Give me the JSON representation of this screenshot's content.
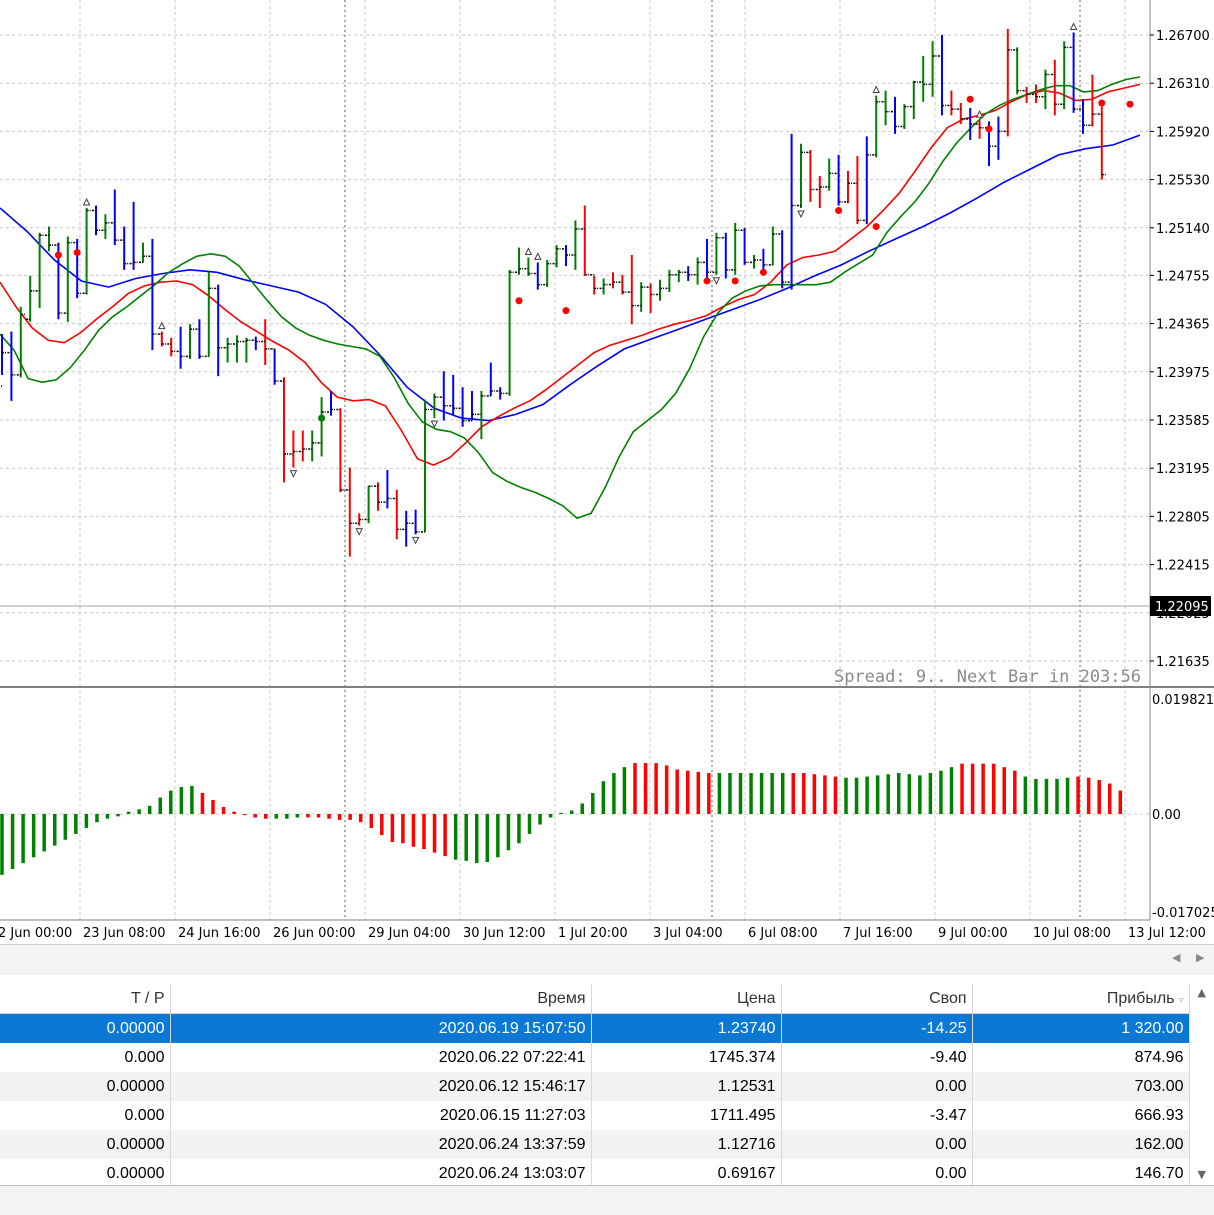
{
  "chart": {
    "price_axis_labels": [
      "1.26700",
      "1.26310",
      "1.25920",
      "1.25530",
      "1.25140",
      "1.24755",
      "1.24365",
      "1.23975",
      "1.23585",
      "1.23195",
      "1.22805",
      "1.22415",
      "1.22025",
      "1.21635"
    ],
    "current_price": "1.22095",
    "time_axis_labels": [
      "2 Jun 00:00",
      "23 Jun 08:00",
      "24 Jun 16:00",
      "26 Jun 00:00",
      "29 Jun 04:00",
      "30 Jun 12:00",
      "1 Jul 20:00",
      "3 Jul 04:00",
      "6 Jul 08:00",
      "7 Jul 16:00",
      "9 Jul 00:00",
      "10 Jul 08:00",
      "13 Jul 12:00"
    ],
    "spread_text": "Spread: 9.. Next Bar in 203:56",
    "osc_axis_labels": [
      "0.019821",
      "0.00",
      "-0.017025"
    ],
    "colors": {
      "up": "#008000",
      "down": "#ff0000",
      "neutral": "#0000ff",
      "ma_green": "#008000",
      "ma_red": "#ff0000",
      "ma_blue": "#0000ff",
      "grid": "#c8c8c8"
    }
  },
  "chart_data": {
    "type": "line",
    "ylim": [
      1.2144,
      1.2705
    ],
    "bars": [
      [
        1.2386,
        1.2428,
        1.2395,
        1.2413,
        "blue"
      ],
      [
        1.2413,
        1.243,
        1.2374,
        1.2395,
        "blue"
      ],
      [
        1.2395,
        1.245,
        1.2393,
        1.2444,
        "green"
      ],
      [
        1.244,
        1.2475,
        1.2438,
        1.2463,
        "green"
      ],
      [
        1.2463,
        1.251,
        1.2449,
        1.2508,
        "green"
      ],
      [
        1.2508,
        1.2515,
        1.2495,
        1.25,
        "green"
      ],
      [
        1.25,
        1.2502,
        1.244,
        1.2445,
        "blue"
      ],
      [
        1.2445,
        1.2507,
        1.2438,
        1.2502,
        "green"
      ],
      [
        1.2502,
        1.2505,
        1.2457,
        1.2461,
        "blue"
      ],
      [
        1.2461,
        1.253,
        1.246,
        1.2528,
        "green"
      ],
      [
        1.2528,
        1.2532,
        1.2508,
        1.2512,
        "blue"
      ],
      [
        1.2512,
        1.2525,
        1.2505,
        1.2518,
        "green"
      ],
      [
        1.2518,
        1.2545,
        1.25,
        1.2504,
        "blue"
      ],
      [
        1.2504,
        1.2515,
        1.248,
        1.2485,
        "blue"
      ],
      [
        1.2485,
        1.2535,
        1.248,
        1.2486,
        "blue"
      ],
      [
        1.2486,
        1.2502,
        1.2486,
        1.2491,
        "green"
      ],
      [
        1.2491,
        1.2505,
        1.2415,
        1.2428,
        "blue"
      ],
      [
        1.2428,
        1.243,
        1.2418,
        1.242,
        "red"
      ],
      [
        1.242,
        1.2425,
        1.241,
        1.2414,
        "red"
      ],
      [
        1.2414,
        1.2434,
        1.24,
        1.241,
        "blue"
      ],
      [
        1.241,
        1.2436,
        1.2408,
        1.2432,
        "green"
      ],
      [
        1.2432,
        1.244,
        1.2408,
        1.241,
        "blue"
      ],
      [
        1.241,
        1.2478,
        1.241,
        1.2465,
        "green"
      ],
      [
        1.2465,
        1.2468,
        1.2394,
        1.2417,
        "blue"
      ],
      [
        1.2417,
        1.2425,
        1.2405,
        1.242,
        "green"
      ],
      [
        1.242,
        1.2427,
        1.2405,
        1.2422,
        "green"
      ],
      [
        1.2422,
        1.2425,
        1.2405,
        1.2423,
        "green"
      ],
      [
        1.2423,
        1.2426,
        1.2415,
        1.2422,
        "blue"
      ],
      [
        1.2422,
        1.244,
        1.2403,
        1.2416,
        "red"
      ],
      [
        1.2416,
        1.2416,
        1.2387,
        1.239,
        "blue"
      ],
      [
        1.239,
        1.2393,
        1.2308,
        1.2331,
        "red"
      ],
      [
        1.2331,
        1.235,
        1.232,
        1.2333,
        "red"
      ],
      [
        1.2333,
        1.235,
        1.2325,
        1.2335,
        "red"
      ],
      [
        1.2335,
        1.235,
        1.2325,
        1.234,
        "green"
      ],
      [
        1.234,
        1.2377,
        1.2329,
        1.2365,
        "green"
      ],
      [
        1.2365,
        1.2382,
        1.2362,
        1.2367,
        "blue"
      ],
      [
        1.2367,
        1.2368,
        1.23,
        1.2302,
        "red"
      ],
      [
        1.2302,
        1.232,
        1.2248,
        1.2275,
        "red"
      ],
      [
        1.2275,
        1.2283,
        1.2273,
        1.2278,
        "red"
      ],
      [
        1.2278,
        1.2305,
        1.2275,
        1.2305,
        "green"
      ],
      [
        1.2305,
        1.2308,
        1.2285,
        1.2292,
        "red"
      ],
      [
        1.2292,
        1.2318,
        1.2287,
        1.2295,
        "blue"
      ],
      [
        1.2295,
        1.2302,
        1.2262,
        1.227,
        "red"
      ],
      [
        1.227,
        1.2285,
        1.2256,
        1.2275,
        "blue"
      ],
      [
        1.2275,
        1.2286,
        1.2266,
        1.2268,
        "blue"
      ],
      [
        1.2268,
        1.2375,
        1.2268,
        1.2367,
        "green"
      ],
      [
        1.2367,
        1.238,
        1.236,
        1.2377,
        "green"
      ],
      [
        1.2377,
        1.2398,
        1.2358,
        1.237,
        "blue"
      ],
      [
        1.237,
        1.2395,
        1.2362,
        1.2368,
        "blue"
      ],
      [
        1.2368,
        1.2385,
        1.2353,
        1.2358,
        "blue"
      ],
      [
        1.2358,
        1.2382,
        1.2358,
        1.2363,
        "blue"
      ],
      [
        1.2363,
        1.2382,
        1.2343,
        1.2378,
        "green"
      ],
      [
        1.2378,
        1.2405,
        1.2378,
        1.2382,
        "blue"
      ],
      [
        1.2382,
        1.2385,
        1.2375,
        1.238,
        "blue"
      ],
      [
        1.238,
        1.248,
        1.2378,
        1.2478,
        "green"
      ],
      [
        1.2478,
        1.2498,
        1.2476,
        1.2481,
        "green"
      ],
      [
        1.2481,
        1.249,
        1.2475,
        1.2477,
        "green"
      ],
      [
        1.2477,
        1.2486,
        1.2464,
        1.2468,
        "blue"
      ],
      [
        1.2468,
        1.2488,
        1.2466,
        1.2485,
        "green"
      ],
      [
        1.2485,
        1.25,
        1.2482,
        1.2497,
        "green"
      ],
      [
        1.2497,
        1.25,
        1.2483,
        1.2492,
        "blue"
      ],
      [
        1.2492,
        1.252,
        1.248,
        1.2513,
        "green"
      ],
      [
        1.2513,
        1.2532,
        1.2475,
        1.2476,
        "red"
      ],
      [
        1.2476,
        1.2475,
        1.246,
        1.2465,
        "red"
      ],
      [
        1.2465,
        1.2473,
        1.246,
        1.2468,
        "green"
      ],
      [
        1.2468,
        1.2478,
        1.2465,
        1.247,
        "red"
      ],
      [
        1.247,
        1.2476,
        1.246,
        1.2462,
        "red"
      ],
      [
        1.2462,
        1.2492,
        1.2436,
        1.2451,
        "red"
      ],
      [
        1.2451,
        1.247,
        1.2446,
        1.2466,
        "green"
      ],
      [
        1.2466,
        1.2469,
        1.2445,
        1.246,
        "red"
      ],
      [
        1.246,
        1.2472,
        1.2455,
        1.2465,
        "green"
      ],
      [
        1.2465,
        1.248,
        1.2462,
        1.2476,
        "green"
      ],
      [
        1.2476,
        1.248,
        1.247,
        1.2478,
        "green"
      ],
      [
        1.2478,
        1.2483,
        1.2471,
        1.2476,
        "blue"
      ],
      [
        1.2476,
        1.249,
        1.2468,
        1.2486,
        "green"
      ],
      [
        1.2486,
        1.2505,
        1.247,
        1.2478,
        "blue"
      ],
      [
        1.2478,
        1.251,
        1.2476,
        1.2506,
        "green"
      ],
      [
        1.2506,
        1.251,
        1.2473,
        1.248,
        "blue"
      ],
      [
        1.248,
        1.2518,
        1.2476,
        1.2512,
        "green"
      ],
      [
        1.2512,
        1.2514,
        1.2484,
        1.2486,
        "blue"
      ],
      [
        1.2486,
        1.2492,
        1.2481,
        1.2488,
        "green"
      ],
      [
        1.2488,
        1.2497,
        1.2478,
        1.2484,
        "blue"
      ],
      [
        1.2484,
        1.2515,
        1.2484,
        1.2509,
        "green"
      ],
      [
        1.2509,
        1.2512,
        1.2465,
        1.247,
        "blue"
      ],
      [
        1.247,
        1.259,
        1.2464,
        1.2532,
        "blue"
      ],
      [
        1.2532,
        1.2582,
        1.253,
        1.2575,
        "green"
      ],
      [
        1.2575,
        1.2577,
        1.2535,
        1.2545,
        "red"
      ],
      [
        1.2545,
        1.2556,
        1.253,
        1.2547,
        "red"
      ],
      [
        1.2547,
        1.257,
        1.2544,
        1.2558,
        "green"
      ],
      [
        1.2558,
        1.2573,
        1.2532,
        1.2535,
        "blue"
      ],
      [
        1.2535,
        1.256,
        1.2534,
        1.255,
        "red"
      ],
      [
        1.255,
        1.2572,
        1.2517,
        1.252,
        "red"
      ],
      [
        1.252,
        1.2588,
        1.2517,
        1.2573,
        "blue"
      ],
      [
        1.2573,
        1.2621,
        1.2571,
        1.2616,
        "green"
      ],
      [
        1.2616,
        1.2625,
        1.2597,
        1.2608,
        "green"
      ],
      [
        1.2608,
        1.262,
        1.259,
        1.2596,
        "blue"
      ],
      [
        1.2596,
        1.2614,
        1.2594,
        1.2612,
        "green"
      ],
      [
        1.2612,
        1.2633,
        1.2602,
        1.2632,
        "green"
      ],
      [
        1.2632,
        1.2653,
        1.2616,
        1.263,
        "green"
      ],
      [
        1.263,
        1.2665,
        1.262,
        1.2653,
        "green"
      ],
      [
        1.2653,
        1.267,
        1.2605,
        1.2613,
        "blue"
      ],
      [
        1.2613,
        1.2625,
        1.2605,
        1.261,
        "red"
      ],
      [
        1.261,
        1.2615,
        1.2598,
        1.2602,
        "red"
      ],
      [
        1.2602,
        1.2611,
        1.2585,
        1.2598,
        "blue"
      ],
      [
        1.2598,
        1.2601,
        1.2586,
        1.2595,
        "red"
      ],
      [
        1.2595,
        1.26,
        1.2564,
        1.258,
        "blue"
      ],
      [
        1.258,
        1.2604,
        1.2569,
        1.2592,
        "blue"
      ],
      [
        1.2592,
        1.2675,
        1.2588,
        1.2658,
        "red"
      ],
      [
        1.2658,
        1.266,
        1.2622,
        1.2625,
        "green"
      ],
      [
        1.2625,
        1.2628,
        1.2615,
        1.2622,
        "red"
      ],
      [
        1.2622,
        1.263,
        1.2615,
        1.262,
        "red"
      ],
      [
        1.262,
        1.2642,
        1.261,
        1.2638,
        "green"
      ],
      [
        1.2638,
        1.265,
        1.2605,
        1.2614,
        "red"
      ],
      [
        1.2614,
        1.2665,
        1.261,
        1.266,
        "green"
      ],
      [
        1.266,
        1.2672,
        1.2607,
        1.261,
        "blue"
      ],
      [
        1.261,
        1.2618,
        1.259,
        1.2597,
        "blue"
      ],
      [
        1.2597,
        1.2638,
        1.2596,
        1.2606,
        "red"
      ],
      [
        1.2606,
        1.2612,
        1.2553,
        1.2557,
        "red"
      ]
    ],
    "ma_green": [
      1.2428,
      1.2415,
      1.2392,
      1.2389,
      1.2391,
      1.2401,
      1.2415,
      1.2431,
      1.2442,
      1.245,
      1.2459,
      1.2468,
      1.2478,
      1.2485,
      1.2491,
      1.2493,
      1.2491,
      1.2483,
      1.2469,
      1.2455,
      1.2442,
      1.2433,
      1.2427,
      1.2423,
      1.242,
      1.2418,
      1.2416,
      1.241,
      1.2393,
      1.2372,
      1.2357,
      1.2351,
      1.2349,
      1.2344,
      1.2332,
      1.2316,
      1.2309,
      1.2304,
      1.23,
      1.2295,
      1.2289,
      1.2279,
      1.2283,
      1.2304,
      1.2329,
      1.2349,
      1.2358,
      1.2367,
      1.238,
      1.24,
      1.2426,
      1.2445,
      1.2457,
      1.2463,
      1.2467,
      1.2468,
      1.2468,
      1.2468,
      1.2468,
      1.247,
      1.2478,
      1.2485,
      1.2492,
      1.251,
      1.2523,
      1.2535,
      1.255,
      1.2568,
      1.2583,
      1.2595,
      1.2606,
      1.2613,
      1.2618,
      1.2622,
      1.2626,
      1.2629,
      1.2629,
      1.2624,
      1.2625,
      1.263,
      1.2634,
      1.2636
    ],
    "ma_red": [
      1.247,
      1.245,
      1.2433,
      1.2423,
      1.2421,
      1.2429,
      1.244,
      1.245,
      1.2461,
      1.2467,
      1.247,
      1.2471,
      1.2468,
      1.2459,
      1.2448,
      1.2438,
      1.243,
      1.2422,
      1.2415,
      1.2405,
      1.2389,
      1.2377,
      1.2374,
      1.2375,
      1.237,
      1.235,
      1.2327,
      1.2322,
      1.2328,
      1.234,
      1.2353,
      1.2361,
      1.2368,
      1.2374,
      1.2383,
      1.2393,
      1.2403,
      1.2413,
      1.2419,
      1.2423,
      1.2427,
      1.2432,
      1.2436,
      1.2439,
      1.2443,
      1.245,
      1.2456,
      1.246,
      1.247,
      1.2484,
      1.249,
      1.2492,
      1.2495,
      1.2505,
      1.2515,
      1.2528,
      1.2542,
      1.256,
      1.2579,
      1.2595,
      1.2602,
      1.2605,
      1.2609,
      1.2616,
      1.2622,
      1.2625,
      1.2623,
      1.2617,
      1.2618,
      1.2624,
      1.2627,
      1.263
    ],
    "ma_blue": [
      1.253,
      1.2511,
      1.2488,
      1.2471,
      1.2466,
      1.2473,
      1.2477,
      1.248,
      1.2478,
      1.2472,
      1.2467,
      1.2462,
      1.2452,
      1.2434,
      1.2411,
      1.2385,
      1.2368,
      1.236,
      1.2358,
      1.2363,
      1.2371,
      1.2387,
      1.2402,
      1.2416,
      1.2424,
      1.2432,
      1.244,
      1.2448,
      1.2456,
      1.2465,
      1.2475,
      1.2484,
      1.2495,
      1.2505,
      1.2515,
      1.2526,
      1.2538,
      1.2551,
      1.2562,
      1.2573,
      1.2578,
      1.2581,
      1.2589
    ],
    "osc": [
      -0.0104,
      -0.0094,
      -0.0084,
      -0.0074,
      -0.0064,
      -0.0054,
      -0.0044,
      -0.0034,
      -0.0024,
      -0.0014,
      -0.0008,
      -0.0004,
      0.0004,
      0.0008,
      0.0014,
      0.0028,
      0.004,
      0.0046,
      0.0048,
      0.0036,
      0.0024,
      0.0012,
      0.0004,
      -0.0002,
      -0.0006,
      -0.0008,
      -0.0008,
      -0.0008,
      -0.0006,
      -0.0006,
      -0.0006,
      -0.0008,
      -0.001,
      -0.001,
      -0.0014,
      -0.0024,
      -0.0036,
      -0.0048,
      -0.005,
      -0.0056,
      -0.006,
      -0.0066,
      -0.0072,
      -0.0078,
      -0.008,
      -0.0084,
      -0.0082,
      -0.0074,
      -0.0062,
      -0.005,
      -0.0034,
      -0.0018,
      -0.0006,
      0.0002,
      0.0006,
      0.0018,
      0.0036,
      0.0056,
      0.007,
      0.008,
      0.0087,
      0.0087,
      0.0087,
      0.0083,
      0.0076,
      0.0074,
      0.0072,
      0.007,
      0.007,
      0.007,
      0.007,
      0.007,
      0.007,
      0.007,
      0.007,
      0.007,
      0.007,
      0.0068,
      0.0066,
      0.0064,
      0.0062,
      0.0062,
      0.0064,
      0.0066,
      0.0068,
      0.007,
      0.0068,
      0.0066,
      0.007,
      0.0074,
      0.008,
      0.0086,
      0.0086,
      0.0086,
      0.0086,
      0.008,
      0.0074,
      0.0064,
      0.006,
      0.006,
      0.006,
      0.0062,
      0.0064,
      0.0062,
      0.0058,
      0.0052,
      0.004
    ],
    "osc_colors": [
      "g",
      "g",
      "g",
      "g",
      "g",
      "g",
      "g",
      "g",
      "g",
      "g",
      "g",
      "g",
      "g",
      "g",
      "g",
      "g",
      "g",
      "g",
      "g",
      "r",
      "r",
      "r",
      "r",
      "r",
      "r",
      "r",
      "g",
      "g",
      "g",
      "r",
      "r",
      "r",
      "r",
      "r",
      "r",
      "r",
      "r",
      "r",
      "r",
      "r",
      "r",
      "r",
      "r",
      "g",
      "g",
      "g",
      "g",
      "g",
      "g",
      "g",
      "g",
      "g",
      "g",
      "g",
      "g",
      "g",
      "g",
      "g",
      "g",
      "g",
      "r",
      "r",
      "r",
      "r",
      "r",
      "r",
      "r",
      "r",
      "g",
      "g",
      "g",
      "g",
      "g",
      "g",
      "g",
      "r",
      "r",
      "r",
      "r",
      "r",
      "g",
      "g",
      "g",
      "g",
      "g",
      "g",
      "g",
      "g",
      "g",
      "g",
      "g",
      "r",
      "r",
      "r",
      "r",
      "r",
      "r",
      "g",
      "g",
      "g",
      "g",
      "g",
      "r",
      "r",
      "r",
      "r"
    ],
    "osc_ylim": [
      -0.017025,
      0.019821
    ],
    "fractals_up": [
      9,
      17,
      56,
      57,
      93,
      104,
      114
    ],
    "fractals_down": [
      31,
      38,
      44,
      46,
      76,
      85
    ],
    "dots_red": [
      [
        6,
        1.2492
      ],
      [
        8,
        1.2494
      ],
      [
        55,
        1.2455
      ],
      [
        60,
        1.2447
      ],
      [
        75,
        1.2471
      ],
      [
        78,
        1.2471
      ],
      [
        81,
        1.2478
      ],
      [
        89,
        1.2528
      ],
      [
        93,
        1.2515
      ],
      [
        103,
        1.2618
      ],
      [
        105,
        1.2594
      ],
      [
        117,
        1.2615
      ],
      [
        120,
        1.2614
      ]
    ],
    "dots_green": [
      [
        34,
        1.236
      ]
    ]
  },
  "terminal": {
    "columns": [
      "T / P",
      "Время",
      "Цена",
      "Своп",
      "Прибыль"
    ],
    "rows": [
      {
        "tp": "0.00000",
        "time": "2020.06.19 15:07:50",
        "price": "1.23740",
        "swap": "-14.25",
        "profit": "1 320.00"
      },
      {
        "tp": "0.000",
        "time": "2020.06.22 07:22:41",
        "price": "1745.374",
        "swap": "-9.40",
        "profit": "874.96"
      },
      {
        "tp": "0.00000",
        "time": "2020.06.12 15:46:17",
        "price": "1.12531",
        "swap": "0.00",
        "profit": "703.00"
      },
      {
        "tp": "0.000",
        "time": "2020.06.15 11:27:03",
        "price": "1711.495",
        "swap": "-3.47",
        "profit": "666.93"
      },
      {
        "tp": "0.00000",
        "time": "2020.06.24 13:37:59",
        "price": "1.12716",
        "swap": "0.00",
        "profit": "162.00"
      },
      {
        "tp": "0.00000",
        "time": "2020.06.24 13:03:07",
        "price": "0.69167",
        "swap": "0.00",
        "profit": "146.70"
      }
    ]
  }
}
